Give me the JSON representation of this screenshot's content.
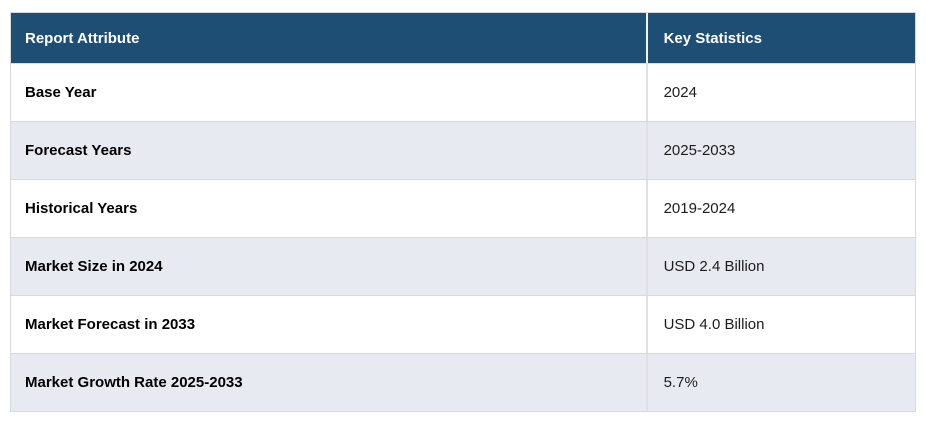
{
  "chart_data": {
    "type": "table",
    "title": "",
    "columns": [
      "Report Attribute",
      "Key Statistics"
    ],
    "rows": [
      [
        "Base Year",
        "2024"
      ],
      [
        "Forecast Years",
        "2025-2033"
      ],
      [
        "Historical Years",
        "2019-2024"
      ],
      [
        "Market Size in 2024",
        "USD 2.4 Billion"
      ],
      [
        "Market Forecast in 2033",
        "USD 4.0 Billion"
      ],
      [
        "Market Growth Rate 2025-2033",
        "5.7%"
      ]
    ]
  },
  "theme": {
    "header_bg": "#1F4E74",
    "header_text": "#FFFFFF",
    "row_bg": "#FFFFFF",
    "row_alt_bg": "#E8EAF2",
    "border_color": "#D9D9D9",
    "body_text": "#1C1C1C"
  }
}
